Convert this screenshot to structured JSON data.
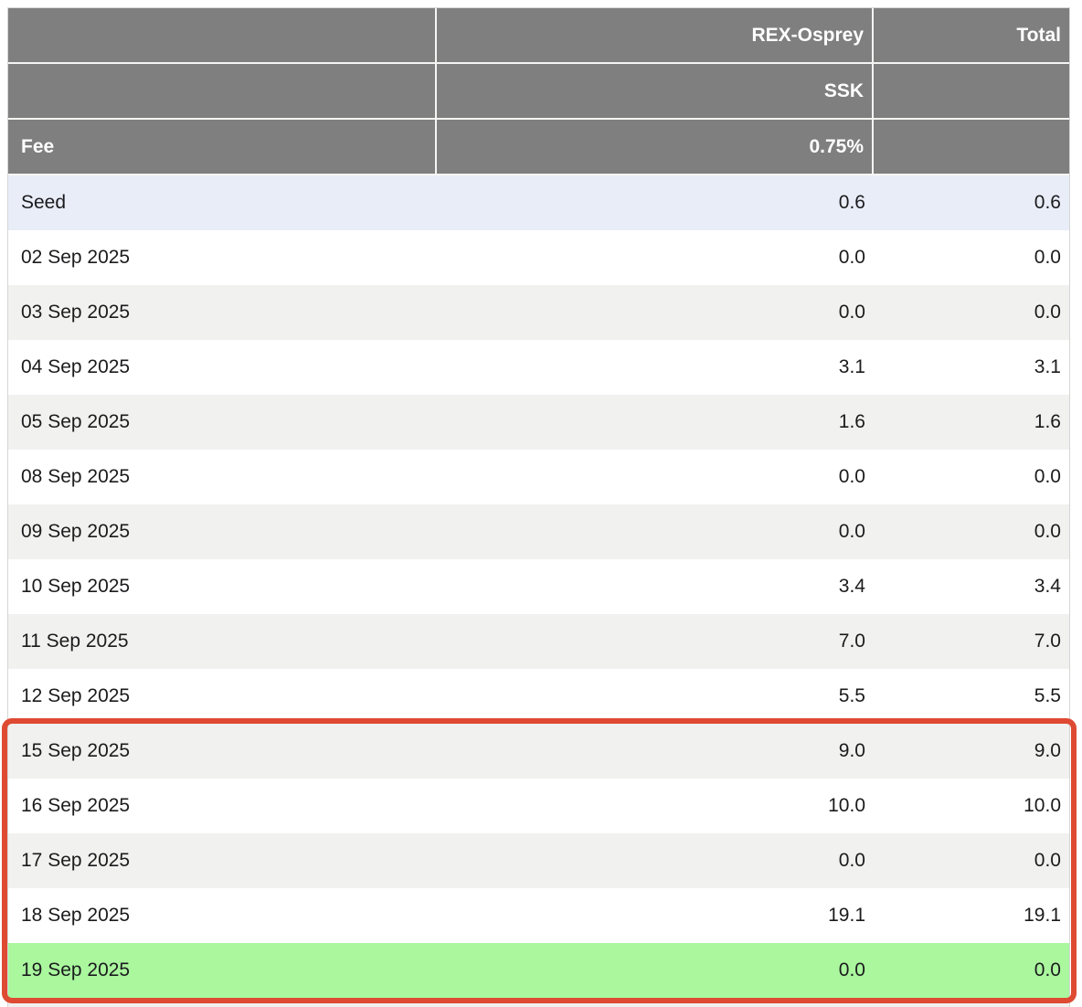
{
  "table": {
    "header": {
      "rows": [
        {
          "col1": "",
          "col2": "REX-Osprey",
          "col3": "Total"
        },
        {
          "col1": "",
          "col2": "SSK",
          "col3": ""
        },
        {
          "col1": "Fee",
          "col2": "0.75%",
          "col3": ""
        }
      ]
    },
    "rows": [
      {
        "label": "Seed",
        "rex_osprey": "0.6",
        "total": "0.6",
        "highlight": "seed"
      },
      {
        "label": "02 Sep 2025",
        "rex_osprey": "0.0",
        "total": "0.0",
        "highlight": "none"
      },
      {
        "label": "03 Sep 2025",
        "rex_osprey": "0.0",
        "total": "0.0",
        "highlight": "none"
      },
      {
        "label": "04 Sep 2025",
        "rex_osprey": "3.1",
        "total": "3.1",
        "highlight": "none"
      },
      {
        "label": "05 Sep 2025",
        "rex_osprey": "1.6",
        "total": "1.6",
        "highlight": "none"
      },
      {
        "label": "08 Sep 2025",
        "rex_osprey": "0.0",
        "total": "0.0",
        "highlight": "none"
      },
      {
        "label": "09 Sep 2025",
        "rex_osprey": "0.0",
        "total": "0.0",
        "highlight": "none"
      },
      {
        "label": "10 Sep 2025",
        "rex_osprey": "3.4",
        "total": "3.4",
        "highlight": "none"
      },
      {
        "label": "11 Sep 2025",
        "rex_osprey": "7.0",
        "total": "7.0",
        "highlight": "none"
      },
      {
        "label": "12 Sep 2025",
        "rex_osprey": "5.5",
        "total": "5.5",
        "highlight": "none"
      },
      {
        "label": "15 Sep 2025",
        "rex_osprey": "9.0",
        "total": "9.0",
        "highlight": "none"
      },
      {
        "label": "16 Sep 2025",
        "rex_osprey": "10.0",
        "total": "10.0",
        "highlight": "none"
      },
      {
        "label": "17 Sep 2025",
        "rex_osprey": "0.0",
        "total": "0.0",
        "highlight": "none"
      },
      {
        "label": "18 Sep 2025",
        "rex_osprey": "19.1",
        "total": "19.1",
        "highlight": "none"
      },
      {
        "label": "19 Sep 2025",
        "rex_osprey": "0.0",
        "total": "0.0",
        "highlight": "current"
      }
    ]
  },
  "annotation": {
    "type": "red-highlight-box",
    "rows_covered_from": "15 Sep 2025",
    "rows_covered_to": "19 Sep 2025",
    "color": "#de4a32"
  },
  "colors": {
    "header_bg": "#7f7f7f",
    "header_text": "#ffffff",
    "seed_row_bg": "#e9edf8",
    "zebra_alt_bg": "#f1f1ef",
    "current_row_bg": "#aaf79e",
    "annotation_red": "#de4a32"
  }
}
